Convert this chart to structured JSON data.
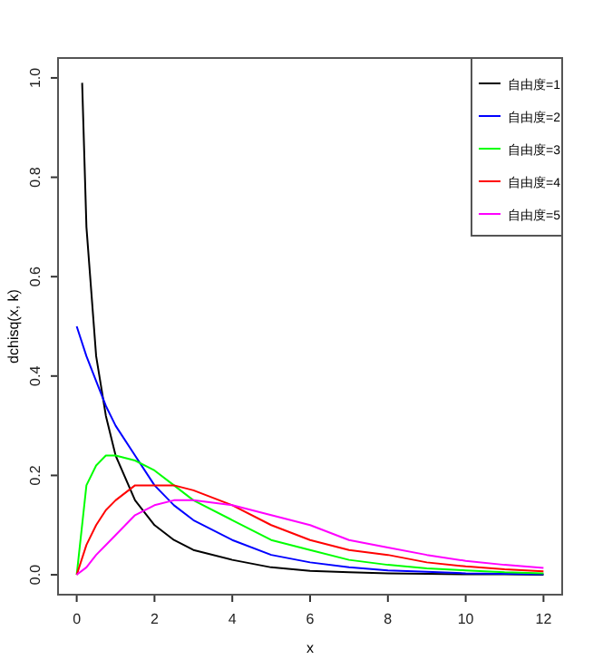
{
  "chart_data": {
    "type": "line",
    "xlabel": "x",
    "ylabel": "dchisq(x, k)",
    "xlim": [
      -0.48,
      12.48
    ],
    "ylim": [
      -0.04,
      1.04
    ],
    "xticks": [
      0,
      2,
      4,
      6,
      8,
      10,
      12
    ],
    "yticks": [
      {
        "value": 0,
        "label": "0.0"
      },
      {
        "value": 0.2,
        "label": "0.2"
      },
      {
        "value": 0.4,
        "label": "0.4"
      },
      {
        "value": 0.6,
        "label": "0.6"
      },
      {
        "value": 0.8,
        "label": "0.8"
      },
      {
        "value": 1,
        "label": "1.0"
      }
    ],
    "grid": false,
    "legend": "top right",
    "marker": "none",
    "line_style": "solid",
    "series": [
      {
        "name": "自由度=1",
        "color": "#000000",
        "x": [
          0.14,
          0.25,
          0.5,
          0.75,
          1,
          1.5,
          2,
          2.5,
          3,
          4,
          5,
          6,
          7,
          8,
          9,
          10,
          11,
          12
        ],
        "values": [
          0.99,
          0.7,
          0.44,
          0.32,
          0.24,
          0.15,
          0.1,
          0.07,
          0.05,
          0.03,
          0.015,
          0.008,
          0.005,
          0.003,
          0.002,
          0.001,
          0.001,
          0
        ]
      },
      {
        "name": "自由度=2",
        "color": "#0000ff",
        "x": [
          0,
          0.25,
          0.5,
          0.75,
          1,
          1.5,
          2,
          2.5,
          3,
          4,
          5,
          6,
          7,
          8,
          9,
          10,
          11,
          12
        ],
        "values": [
          0.5,
          0.44,
          0.39,
          0.34,
          0.3,
          0.24,
          0.18,
          0.14,
          0.11,
          0.07,
          0.04,
          0.025,
          0.015,
          0.009,
          0.006,
          0.003,
          0.002,
          0.001
        ]
      },
      {
        "name": "自由度=3",
        "color": "#00ff00",
        "x": [
          0,
          0.25,
          0.5,
          0.75,
          1,
          1.5,
          2,
          2.5,
          3,
          4,
          5,
          6,
          7,
          8,
          9,
          10,
          11,
          12
        ],
        "values": [
          0,
          0.18,
          0.22,
          0.24,
          0.24,
          0.23,
          0.21,
          0.18,
          0.15,
          0.11,
          0.07,
          0.05,
          0.03,
          0.02,
          0.013,
          0.009,
          0.005,
          0.003
        ]
      },
      {
        "name": "自由度=4",
        "color": "#ff0000",
        "x": [
          0,
          0.25,
          0.5,
          0.75,
          1,
          1.5,
          2,
          2.5,
          3,
          4,
          5,
          6,
          7,
          8,
          9,
          10,
          11,
          12
        ],
        "values": [
          0,
          0.06,
          0.1,
          0.13,
          0.15,
          0.18,
          0.18,
          0.18,
          0.17,
          0.14,
          0.1,
          0.07,
          0.05,
          0.04,
          0.025,
          0.017,
          0.011,
          0.007
        ]
      },
      {
        "name": "自由度=5",
        "color": "#ff00ff",
        "x": [
          0,
          0.25,
          0.5,
          0.75,
          1,
          1.5,
          2,
          2.5,
          3,
          4,
          5,
          6,
          7,
          8,
          9,
          10,
          11,
          12
        ],
        "values": [
          0,
          0.015,
          0.04,
          0.06,
          0.08,
          0.12,
          0.14,
          0.15,
          0.15,
          0.14,
          0.12,
          0.1,
          0.07,
          0.055,
          0.04,
          0.028,
          0.02,
          0.014
        ]
      }
    ]
  }
}
